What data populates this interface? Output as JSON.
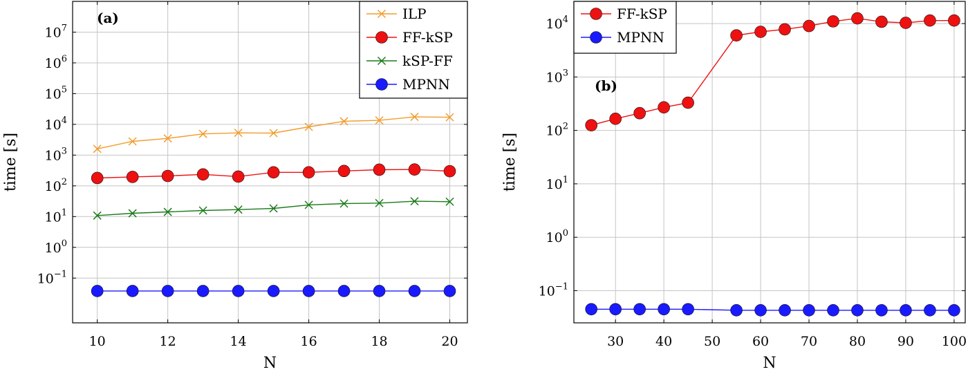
{
  "chart_data": [
    {
      "type": "line",
      "panel_label": "(a)",
      "xlabel": "N",
      "ylabel": "time [s]",
      "yscale": "log",
      "xlim": [
        9.3,
        20.5
      ],
      "ylim": [
        0.0035,
        100000000.0
      ],
      "grid": true,
      "legend_position": "top-right",
      "x_ticks": [
        10,
        12,
        14,
        16,
        18,
        20
      ],
      "y_ticks": [
        {
          "base": "10",
          "exp": "−1",
          "value": 0.1
        },
        {
          "base": "10",
          "exp": "0",
          "value": 1
        },
        {
          "base": "10",
          "exp": "1",
          "value": 10
        },
        {
          "base": "10",
          "exp": "2",
          "value": 100
        },
        {
          "base": "10",
          "exp": "3",
          "value": 1000
        },
        {
          "base": "10",
          "exp": "4",
          "value": 10000
        },
        {
          "base": "10",
          "exp": "5",
          "value": 100000
        },
        {
          "base": "10",
          "exp": "6",
          "value": 1000000
        },
        {
          "base": "10",
          "exp": "7",
          "value": 10000000
        }
      ],
      "x": [
        10,
        11,
        12,
        13,
        14,
        15,
        16,
        17,
        18,
        19,
        20
      ],
      "series": [
        {
          "name": "ILP",
          "color": "#f39c2b",
          "marker": "x",
          "values": [
            1600,
            2800,
            3500,
            4900,
            5300,
            5200,
            8300,
            12600,
            13500,
            17500,
            17000
          ]
        },
        {
          "name": "FF-kSP",
          "color": "#ee1111",
          "marker": "circle",
          "values": [
            180,
            195,
            210,
            235,
            200,
            275,
            275,
            305,
            335,
            340,
            300
          ]
        },
        {
          "name": "kSP-FF",
          "color": "#1a7a1a",
          "marker": "x",
          "values": [
            10.8,
            12.8,
            14.2,
            15.8,
            16.9,
            18.4,
            24,
            26.5,
            27.5,
            31.5,
            30.5
          ]
        },
        {
          "name": "MPNN",
          "color": "#1a1aff",
          "marker": "circle",
          "values": [
            0.038,
            0.038,
            0.038,
            0.038,
            0.038,
            0.038,
            0.038,
            0.038,
            0.038,
            0.038,
            0.038
          ]
        }
      ]
    },
    {
      "type": "line",
      "panel_label": "(b)",
      "xlabel": "N",
      "ylabel": "time [s]",
      "yscale": "log",
      "xlim": [
        21.4,
        102.3
      ],
      "ylim": [
        0.025,
        26000
      ],
      "grid": true,
      "legend_position": "top-left",
      "x_ticks": [
        30,
        40,
        50,
        60,
        70,
        80,
        90,
        100
      ],
      "y_ticks": [
        {
          "base": "10",
          "exp": "−1",
          "value": 0.1
        },
        {
          "base": "10",
          "exp": "0",
          "value": 1
        },
        {
          "base": "10",
          "exp": "1",
          "value": 10
        },
        {
          "base": "10",
          "exp": "2",
          "value": 100
        },
        {
          "base": "10",
          "exp": "3",
          "value": 1000
        },
        {
          "base": "10",
          "exp": "4",
          "value": 10000
        }
      ],
      "x": [
        25,
        30,
        35,
        40,
        45,
        55,
        60,
        65,
        70,
        75,
        80,
        85,
        90,
        95,
        100
      ],
      "series": [
        {
          "name": "FF-kSP",
          "color": "#ee1111",
          "marker": "circle",
          "values": [
            125,
            165,
            210,
            270,
            330,
            6000,
            7000,
            7800,
            9000,
            11000,
            12500,
            10800,
            10300,
            11400,
            11400
          ]
        },
        {
          "name": "MPNN",
          "color": "#1a1aff",
          "marker": "circle",
          "values": [
            0.045,
            0.045,
            0.045,
            0.045,
            0.045,
            0.043,
            0.043,
            0.043,
            0.043,
            0.043,
            0.043,
            0.043,
            0.043,
            0.043,
            0.043
          ]
        }
      ]
    }
  ]
}
